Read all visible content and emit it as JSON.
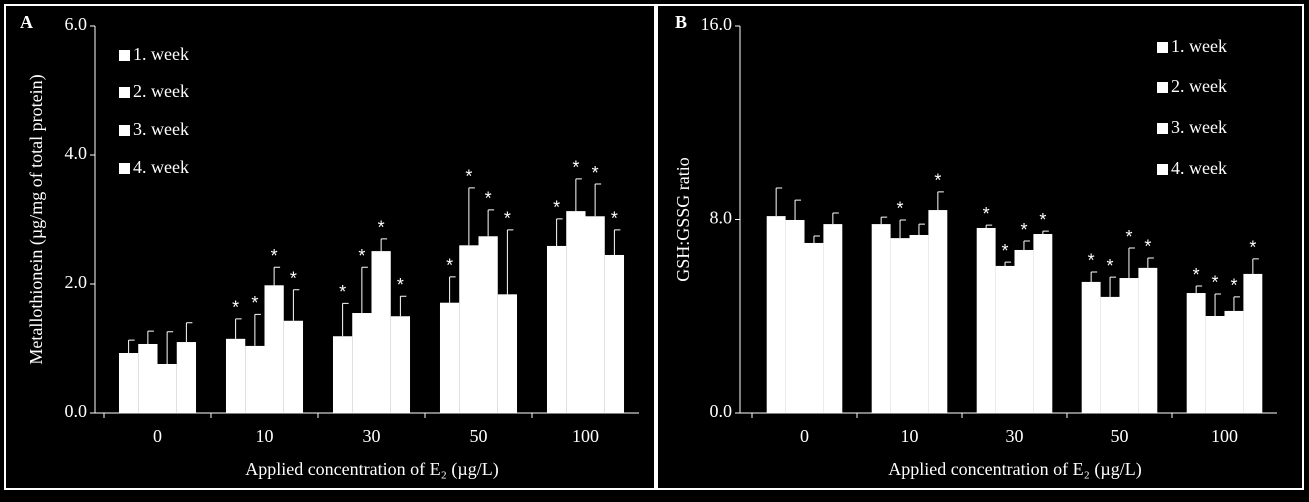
{
  "chart_data": [
    {
      "type": "bar",
      "panel_label": "A",
      "y_label": "Metallothionein (µg/mg of total protein)",
      "x_label": "Applied concentration of E₂ (µg/L)",
      "categories": [
        "0",
        "10",
        "30",
        "50",
        "100"
      ],
      "ylim": [
        0,
        6
      ],
      "yticks": [
        {
          "value": 0,
          "label": "0.0"
        },
        {
          "value": 2,
          "label": "2.0"
        },
        {
          "value": 4,
          "label": "4.0"
        },
        {
          "value": 6,
          "label": "6.0"
        }
      ],
      "grid": false,
      "legend_position": "upper-left",
      "significance_marker": "*",
      "series": [
        {
          "name": "1. week",
          "color": "#ffffff",
          "values": [
            0.93,
            1.15,
            1.19,
            1.71,
            2.59
          ],
          "errors": [
            0.2,
            0.31,
            0.51,
            0.4,
            0.42
          ],
          "significant": [
            false,
            true,
            true,
            true,
            true
          ]
        },
        {
          "name": "2. week",
          "color": "#ffffff",
          "values": [
            1.07,
            1.04,
            1.55,
            2.6,
            3.13
          ],
          "errors": [
            0.2,
            0.49,
            0.71,
            0.89,
            0.5
          ],
          "significant": [
            false,
            true,
            true,
            true,
            true
          ]
        },
        {
          "name": "3. week",
          "color": "#ffffff",
          "values": [
            0.76,
            1.98,
            2.51,
            2.74,
            3.05
          ],
          "errors": [
            0.5,
            0.28,
            0.19,
            0.41,
            0.5
          ],
          "significant": [
            false,
            true,
            true,
            true,
            true
          ]
        },
        {
          "name": "4. week",
          "color": "#ffffff",
          "values": [
            1.1,
            1.43,
            1.5,
            1.84,
            2.45
          ],
          "errors": [
            0.3,
            0.48,
            0.31,
            1.0,
            0.39
          ],
          "significant": [
            false,
            true,
            true,
            true,
            true
          ]
        }
      ]
    },
    {
      "type": "bar",
      "panel_label": "B",
      "y_label": "GSH:GSSG ratio",
      "x_label": "Applied concentration of E₂ (µg/L)",
      "categories": [
        "0",
        "10",
        "30",
        "50",
        "100"
      ],
      "ylim": [
        0,
        16
      ],
      "yticks": [
        {
          "value": 0,
          "label": "0.0"
        },
        {
          "value": 8,
          "label": "8.0"
        },
        {
          "value": 16,
          "label": "16.0"
        }
      ],
      "grid": false,
      "legend_position": "upper-right",
      "significance_marker": "*",
      "series": [
        {
          "name": "1. week",
          "color": "#ffffff",
          "values": [
            8.14,
            7.81,
            7.65,
            5.42,
            4.96
          ],
          "errors": [
            1.16,
            0.29,
            0.12,
            0.41,
            0.29
          ],
          "significant": [
            false,
            false,
            true,
            true,
            true
          ]
        },
        {
          "name": "2. week",
          "color": "#ffffff",
          "values": [
            7.98,
            7.23,
            6.08,
            4.8,
            4.01
          ],
          "errors": [
            0.82,
            0.75,
            0.16,
            0.82,
            0.91
          ],
          "significant": [
            false,
            true,
            true,
            true,
            true
          ]
        },
        {
          "name": "3. week",
          "color": "#ffffff",
          "values": [
            7.03,
            7.36,
            6.74,
            5.58,
            4.22
          ],
          "errors": [
            0.29,
            0.45,
            0.37,
            1.24,
            0.58
          ],
          "significant": [
            false,
            false,
            true,
            true,
            true
          ]
        },
        {
          "name": "4. week",
          "color": "#ffffff",
          "values": [
            7.81,
            8.39,
            7.4,
            6.0,
            5.75
          ],
          "errors": [
            0.46,
            0.75,
            0.12,
            0.41,
            0.62
          ],
          "significant": [
            false,
            true,
            true,
            true,
            true
          ]
        }
      ]
    }
  ]
}
